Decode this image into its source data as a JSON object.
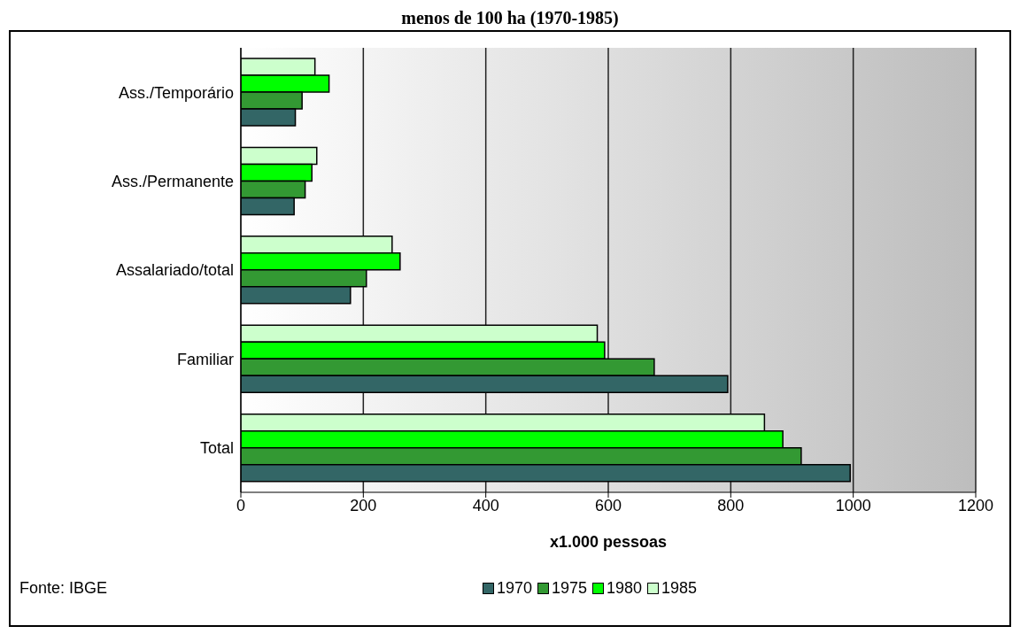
{
  "chart_data": {
    "type": "bar",
    "orientation": "horizontal",
    "title": "menos de 100 ha (1970-1985)",
    "categories": [
      "Ass./Temporário",
      "Ass./Permanente",
      "Assalariado/total",
      "Familiar",
      "Total"
    ],
    "series": [
      {
        "name": "1970",
        "color": "#336666",
        "values": [
          89,
          87,
          179,
          795,
          995
        ]
      },
      {
        "name": "1975",
        "color": "#339933",
        "values": [
          100,
          105,
          205,
          675,
          915
        ]
      },
      {
        "name": "1980",
        "color": "#00ff00",
        "values": [
          144,
          116,
          260,
          594,
          885
        ]
      },
      {
        "name": "1985",
        "color": "#ccffcc",
        "values": [
          121,
          124,
          247,
          582,
          855
        ]
      }
    ],
    "xlim": [
      0,
      1200
    ],
    "xticks": [
      0,
      200,
      400,
      600,
      800,
      1000,
      1200
    ],
    "xlabel": "x1.000 pessoas",
    "grid": "x",
    "legend": "bottom",
    "annotations": [
      "Fonte: IBGE"
    ]
  }
}
